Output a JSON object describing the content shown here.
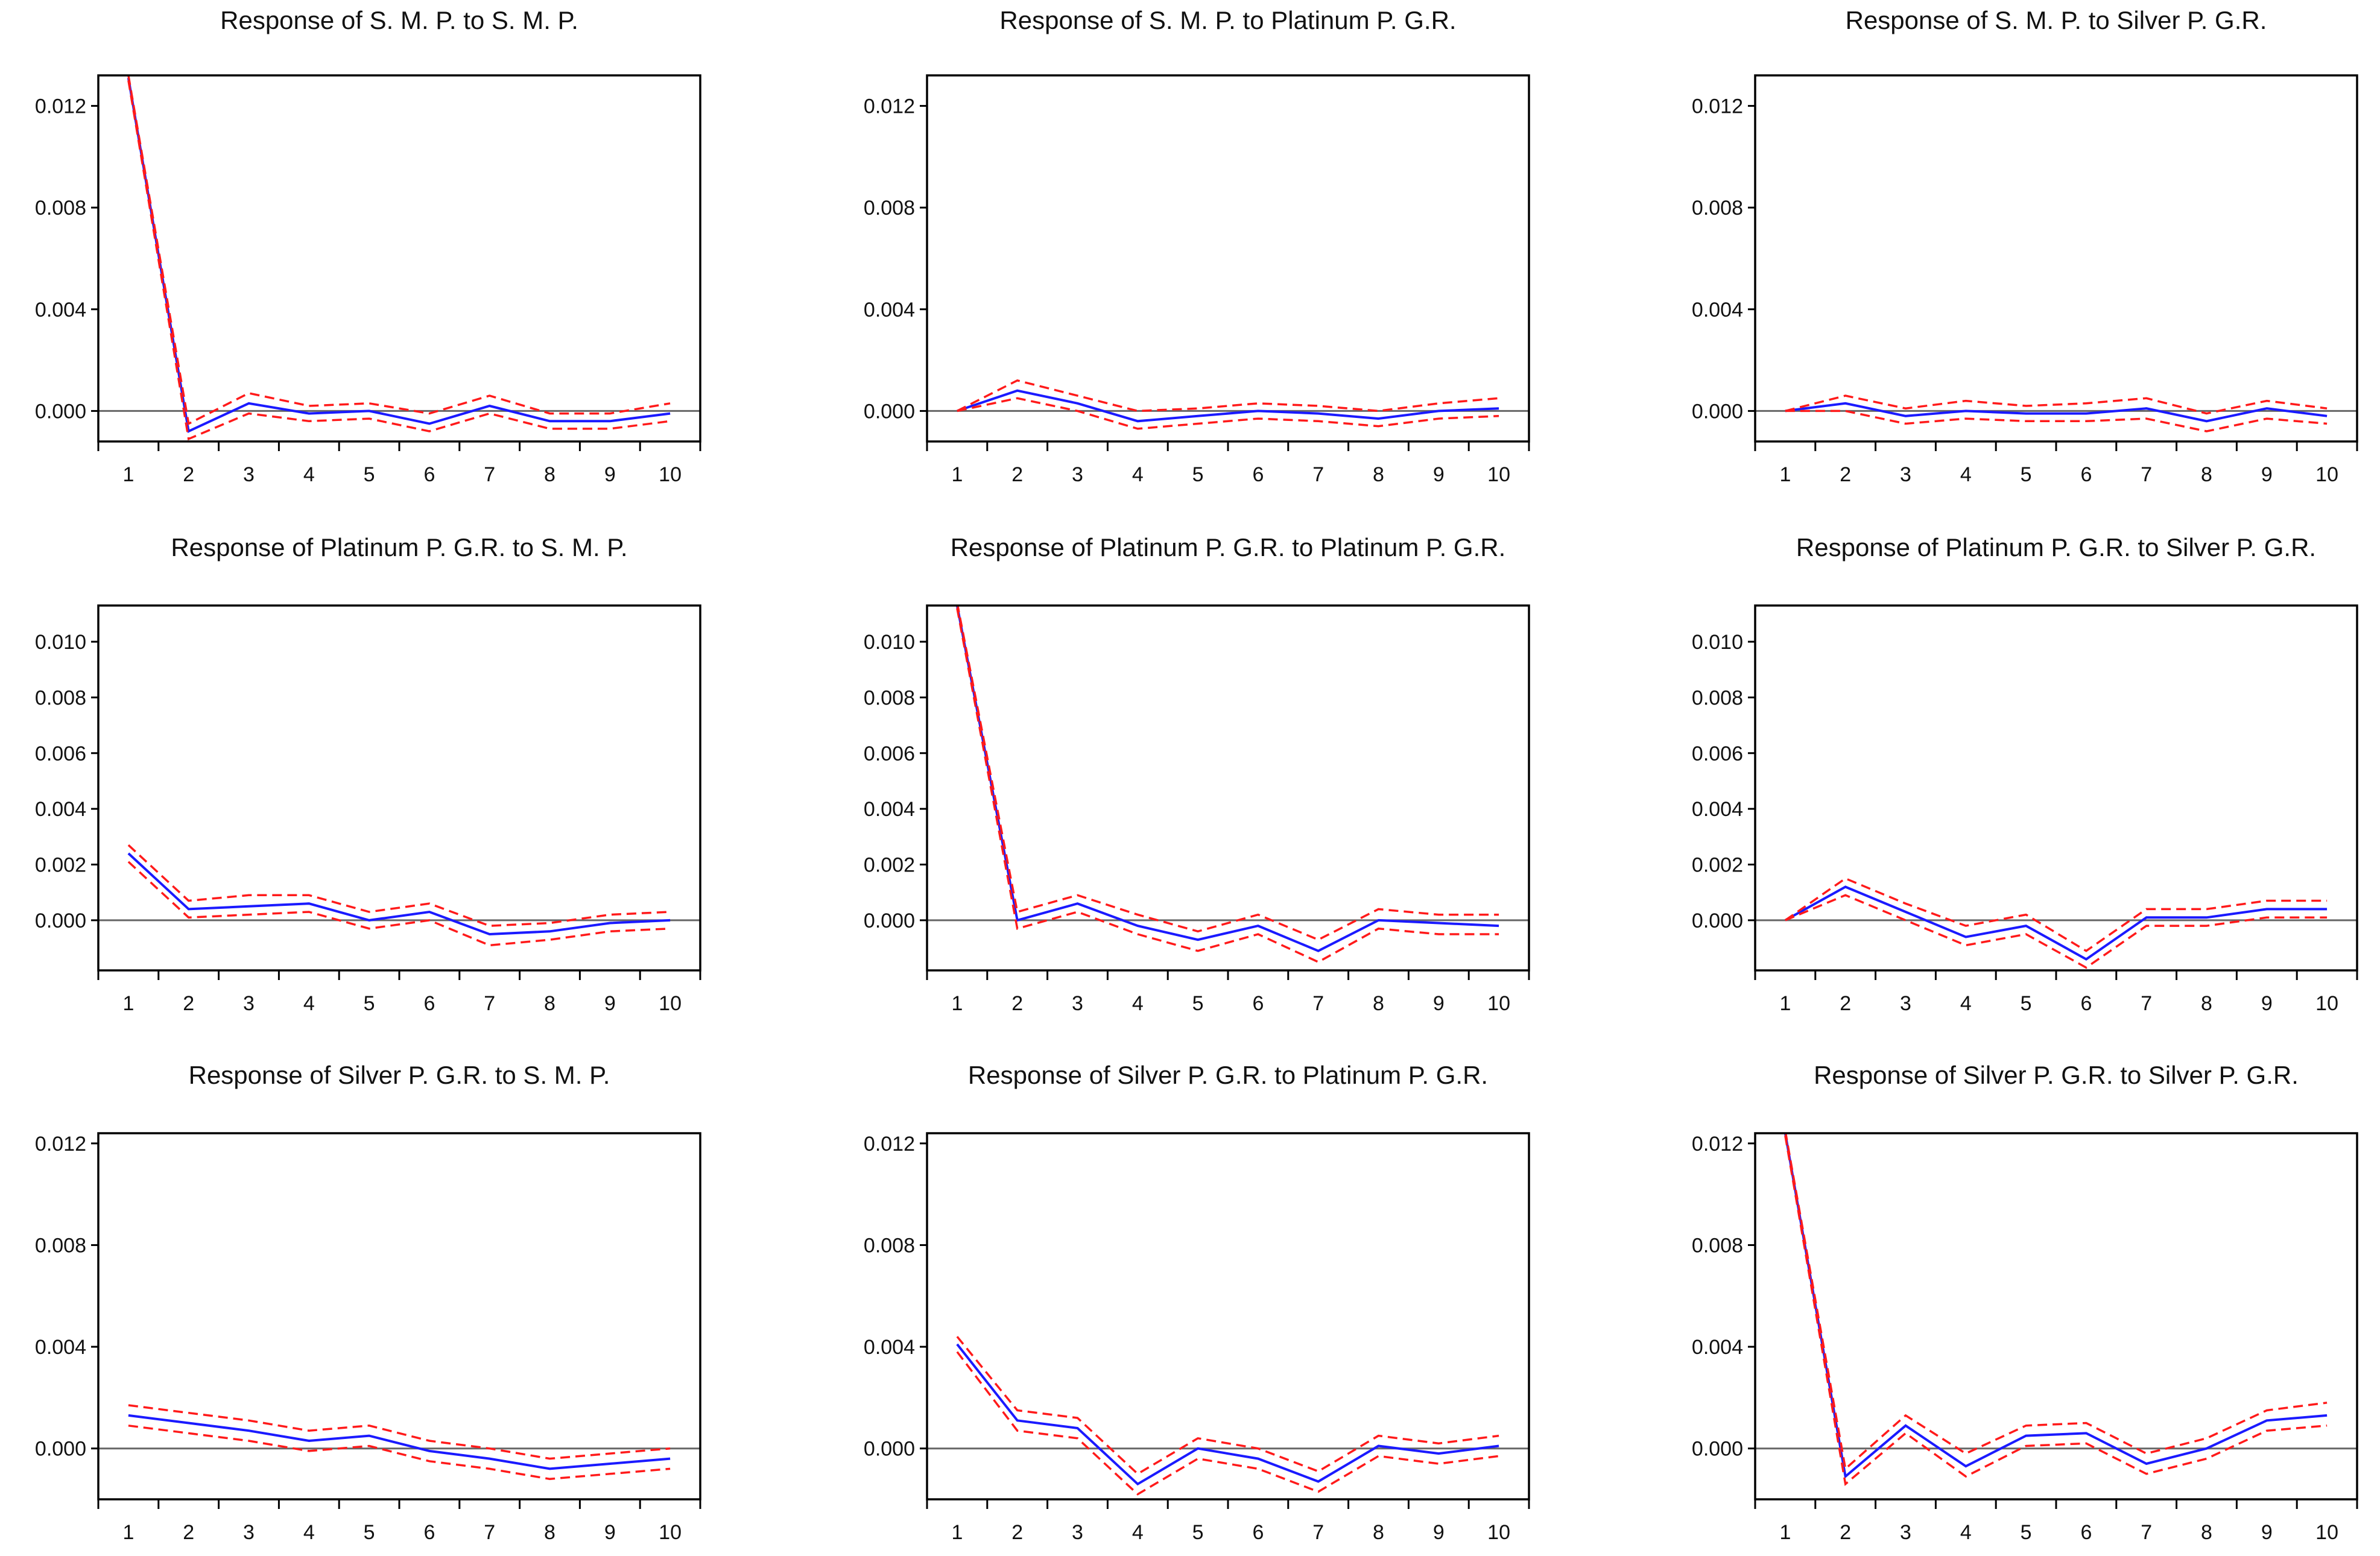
{
  "chart_data": [
    {
      "type": "line",
      "title": "Response of S. M. P. to S. M. P.",
      "categories": [
        1,
        2,
        3,
        4,
        5,
        6,
        7,
        8,
        9,
        10
      ],
      "ylim": [
        -0.0012,
        0.0132
      ],
      "yticks": [
        0.0,
        0.004,
        0.008,
        0.012
      ],
      "ytick_labels": [
        "0.000",
        "0.004",
        "0.008",
        "0.012"
      ],
      "series": [
        {
          "name": "response",
          "values": [
            0.0131,
            -0.0008,
            0.0003,
            -0.0001,
            0.0,
            -0.0005,
            0.0002,
            -0.0004,
            -0.0004,
            -0.0001
          ]
        },
        {
          "name": "upper",
          "values": [
            0.0132,
            -0.0005,
            0.0007,
            0.0002,
            0.0003,
            -0.0001,
            0.0006,
            -0.0001,
            -0.0001,
            0.0003
          ]
        },
        {
          "name": "lower",
          "values": [
            0.013,
            -0.0011,
            -0.0001,
            -0.0004,
            -0.0003,
            -0.0008,
            -0.0001,
            -0.0007,
            -0.0007,
            -0.0004
          ]
        }
      ]
    },
    {
      "type": "line",
      "title": "Response of S. M. P. to Platinum P. G.R.",
      "categories": [
        1,
        2,
        3,
        4,
        5,
        6,
        7,
        8,
        9,
        10
      ],
      "ylim": [
        -0.0012,
        0.0132
      ],
      "yticks": [
        0.0,
        0.004,
        0.008,
        0.012
      ],
      "ytick_labels": [
        "0.000",
        "0.004",
        "0.008",
        "0.012"
      ],
      "series": [
        {
          "name": "response",
          "values": [
            0.0,
            0.0008,
            0.0003,
            -0.0004,
            -0.0002,
            0.0,
            -0.0001,
            -0.0003,
            0.0,
            0.0001
          ]
        },
        {
          "name": "upper",
          "values": [
            0.0,
            0.0012,
            0.0006,
            0.0,
            0.0001,
            0.0003,
            0.0002,
            0.0,
            0.0003,
            0.0005
          ]
        },
        {
          "name": "lower",
          "values": [
            0.0,
            0.0005,
            0.0,
            -0.0007,
            -0.0005,
            -0.0003,
            -0.0004,
            -0.0006,
            -0.0003,
            -0.0002
          ]
        }
      ]
    },
    {
      "type": "line",
      "title": "Response of S. M. P. to Silver P. G.R.",
      "categories": [
        1,
        2,
        3,
        4,
        5,
        6,
        7,
        8,
        9,
        10
      ],
      "ylim": [
        -0.0012,
        0.0132
      ],
      "yticks": [
        0.0,
        0.004,
        0.008,
        0.012
      ],
      "ytick_labels": [
        "0.000",
        "0.004",
        "0.008",
        "0.012"
      ],
      "series": [
        {
          "name": "response",
          "values": [
            0.0,
            0.0003,
            -0.0002,
            0.0,
            -0.0001,
            -0.0001,
            0.0001,
            -0.0004,
            0.0001,
            -0.0002
          ]
        },
        {
          "name": "upper",
          "values": [
            0.0,
            0.0006,
            0.0001,
            0.0004,
            0.0002,
            0.0003,
            0.0005,
            -0.0001,
            0.0004,
            0.0001
          ]
        },
        {
          "name": "lower",
          "values": [
            0.0,
            0.0,
            -0.0005,
            -0.0003,
            -0.0004,
            -0.0004,
            -0.0003,
            -0.0008,
            -0.0003,
            -0.0005
          ]
        }
      ]
    },
    {
      "type": "line",
      "title": "Response of Platinum P. G.R. to S. M. P.",
      "categories": [
        1,
        2,
        3,
        4,
        5,
        6,
        7,
        8,
        9,
        10
      ],
      "ylim": [
        -0.0018,
        0.0113
      ],
      "yticks": [
        0.0,
        0.002,
        0.004,
        0.006,
        0.008,
        0.01
      ],
      "ytick_labels": [
        "0.000",
        "0.002",
        "0.004",
        "0.006",
        "0.008",
        "0.010"
      ],
      "series": [
        {
          "name": "response",
          "values": [
            0.0024,
            0.0004,
            0.0005,
            0.0006,
            0.0,
            0.0003,
            -0.0005,
            -0.0004,
            -0.0001,
            0.0
          ]
        },
        {
          "name": "upper",
          "values": [
            0.0027,
            0.0007,
            0.0009,
            0.0009,
            0.0003,
            0.0006,
            -0.0002,
            -0.0001,
            0.0002,
            0.0003
          ]
        },
        {
          "name": "lower",
          "values": [
            0.0021,
            0.0001,
            0.0002,
            0.0003,
            -0.0003,
            0.0,
            -0.0009,
            -0.0007,
            -0.0004,
            -0.0003
          ]
        }
      ]
    },
    {
      "type": "line",
      "title": "Response of Platinum P. G.R. to Platinum P. G.R.",
      "categories": [
        1,
        2,
        3,
        4,
        5,
        6,
        7,
        8,
        9,
        10
      ],
      "ylim": [
        -0.0018,
        0.0113
      ],
      "yticks": [
        0.0,
        0.002,
        0.004,
        0.006,
        0.008,
        0.01
      ],
      "ytick_labels": [
        "0.000",
        "0.002",
        "0.004",
        "0.006",
        "0.008",
        "0.010"
      ],
      "series": [
        {
          "name": "response",
          "values": [
            0.0113,
            0.0,
            0.0006,
            -0.0002,
            -0.0007,
            -0.0002,
            -0.0011,
            0.0,
            -0.0001,
            -0.0002
          ]
        },
        {
          "name": "upper",
          "values": [
            0.0114,
            0.0003,
            0.0009,
            0.0002,
            -0.0004,
            0.0002,
            -0.0007,
            0.0004,
            0.0002,
            0.0002
          ]
        },
        {
          "name": "lower",
          "values": [
            0.0112,
            -0.0003,
            0.0003,
            -0.0005,
            -0.0011,
            -0.0005,
            -0.0015,
            -0.0003,
            -0.0005,
            -0.0005
          ]
        }
      ]
    },
    {
      "type": "line",
      "title": "Response of Platinum P. G.R. to Silver P. G.R.",
      "categories": [
        1,
        2,
        3,
        4,
        5,
        6,
        7,
        8,
        9,
        10
      ],
      "ylim": [
        -0.0018,
        0.0113
      ],
      "yticks": [
        0.0,
        0.002,
        0.004,
        0.006,
        0.008,
        0.01
      ],
      "ytick_labels": [
        "0.000",
        "0.002",
        "0.004",
        "0.006",
        "0.008",
        "0.010"
      ],
      "series": [
        {
          "name": "response",
          "values": [
            0.0,
            0.0012,
            0.0003,
            -0.0006,
            -0.0002,
            -0.0014,
            0.0001,
            0.0001,
            0.0004,
            0.0004
          ]
        },
        {
          "name": "upper",
          "values": [
            0.0,
            0.0015,
            0.0006,
            -0.0002,
            0.0002,
            -0.0011,
            0.0004,
            0.0004,
            0.0007,
            0.0007
          ]
        },
        {
          "name": "lower",
          "values": [
            0.0,
            0.0009,
            0.0,
            -0.0009,
            -0.0005,
            -0.0017,
            -0.0002,
            -0.0002,
            0.0001,
            0.0001
          ]
        }
      ]
    },
    {
      "type": "line",
      "title": "Response of Silver P. G.R. to S. M. P.",
      "categories": [
        1,
        2,
        3,
        4,
        5,
        6,
        7,
        8,
        9,
        10
      ],
      "ylim": [
        -0.002,
        0.0124
      ],
      "yticks": [
        0.0,
        0.004,
        0.008,
        0.012
      ],
      "ytick_labels": [
        "0.000",
        "0.004",
        "0.008",
        "0.012"
      ],
      "series": [
        {
          "name": "response",
          "values": [
            0.0013,
            0.001,
            0.0007,
            0.0003,
            0.0005,
            -0.0001,
            -0.0004,
            -0.0008,
            -0.0006,
            -0.0004
          ]
        },
        {
          "name": "upper",
          "values": [
            0.0017,
            0.0014,
            0.0011,
            0.0007,
            0.0009,
            0.0003,
            0.0,
            -0.0004,
            -0.0002,
            0.0
          ]
        },
        {
          "name": "lower",
          "values": [
            0.0009,
            0.0006,
            0.0003,
            -0.0001,
            0.0001,
            -0.0005,
            -0.0008,
            -0.0012,
            -0.001,
            -0.0008
          ]
        }
      ]
    },
    {
      "type": "line",
      "title": "Response of Silver P. G.R. to Platinum P. G.R.",
      "categories": [
        1,
        2,
        3,
        4,
        5,
        6,
        7,
        8,
        9,
        10
      ],
      "ylim": [
        -0.002,
        0.0124
      ],
      "yticks": [
        0.0,
        0.004,
        0.008,
        0.012
      ],
      "ytick_labels": [
        "0.000",
        "0.004",
        "0.008",
        "0.012"
      ],
      "series": [
        {
          "name": "response",
          "values": [
            0.0041,
            0.0011,
            0.0008,
            -0.0014,
            0.0,
            -0.0004,
            -0.0013,
            0.0001,
            -0.0002,
            0.0001
          ]
        },
        {
          "name": "upper",
          "values": [
            0.0044,
            0.0015,
            0.0012,
            -0.001,
            0.0004,
            0.0,
            -0.0009,
            0.0005,
            0.0002,
            0.0005
          ]
        },
        {
          "name": "lower",
          "values": [
            0.0038,
            0.0007,
            0.0004,
            -0.0018,
            -0.0004,
            -0.0008,
            -0.0017,
            -0.0003,
            -0.0006,
            -0.0003
          ]
        }
      ]
    },
    {
      "type": "line",
      "title": "Response of Silver P. G.R. to Silver P. G.R.",
      "categories": [
        1,
        2,
        3,
        4,
        5,
        6,
        7,
        8,
        9,
        10
      ],
      "ylim": [
        -0.002,
        0.0124
      ],
      "yticks": [
        0.0,
        0.004,
        0.008,
        0.012
      ],
      "ytick_labels": [
        "0.000",
        "0.004",
        "0.008",
        "0.012"
      ],
      "series": [
        {
          "name": "response",
          "values": [
            0.0124,
            -0.0011,
            0.0009,
            -0.0007,
            0.0005,
            0.0006,
            -0.0006,
            0.0,
            0.0011,
            0.0013
          ]
        },
        {
          "name": "upper",
          "values": [
            0.0125,
            -0.0008,
            0.0013,
            -0.0002,
            0.0009,
            0.001,
            -0.0002,
            0.0004,
            0.0015,
            0.0018
          ]
        },
        {
          "name": "lower",
          "values": [
            0.0123,
            -0.0014,
            0.0006,
            -0.0011,
            0.0001,
            0.0002,
            -0.001,
            -0.0004,
            0.0007,
            0.0009
          ]
        }
      ]
    }
  ],
  "colors": {
    "response": "#1a1aff",
    "band": "#ff1a1a",
    "zero_line": "#666666",
    "frame": "#000000"
  }
}
